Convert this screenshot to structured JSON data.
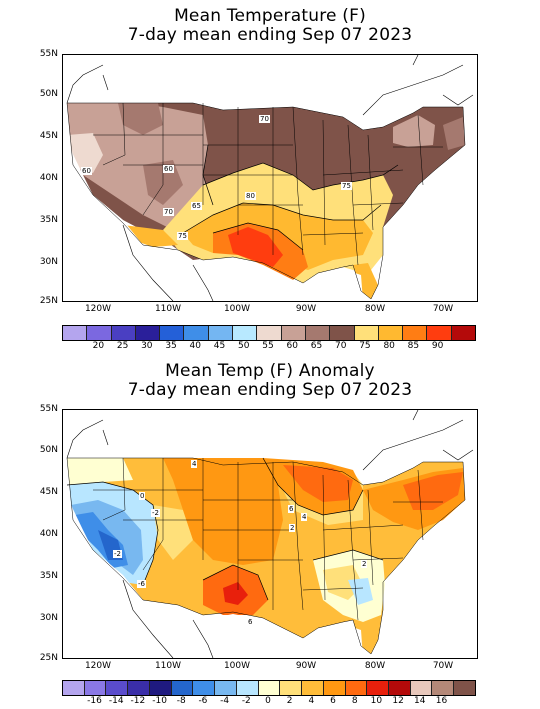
{
  "panel1": {
    "title_line1": "Mean Temperature (F)",
    "title_line2": "7-day mean ending Sep 07 2023",
    "lat_labels": [
      "55N",
      "50N",
      "45N",
      "40N",
      "35N",
      "30N",
      "25N"
    ],
    "lon_labels": [
      "120W",
      "110W",
      "100W",
      "90W",
      "80W",
      "70W"
    ],
    "contour_labels": [
      "70",
      "60",
      "60",
      "70",
      "65",
      "80",
      "75",
      "75"
    ],
    "colorbar_colors": [
      "#b4a5ee",
      "#7b68e0",
      "#4a3fc2",
      "#2a1f9a",
      "#2460d8",
      "#3f8ee8",
      "#74b6f2",
      "#b8e9ff",
      "#eedad0",
      "#c8a196",
      "#a5796f",
      "#7f5349",
      "#ffe07a",
      "#ffb930",
      "#ff7d14",
      "#ff3d0f",
      "#b40a0a"
    ],
    "colorbar_ticks": [
      "20",
      "25",
      "30",
      "35",
      "40",
      "45",
      "50",
      "55",
      "60",
      "65",
      "70",
      "75",
      "80",
      "85",
      "90"
    ]
  },
  "panel2": {
    "title_line1": "Mean Temp (F) Anomaly",
    "title_line2": "7-day mean ending Sep 07 2023",
    "lat_labels": [
      "55N",
      "50N",
      "45N",
      "40N",
      "35N",
      "30N",
      "25N"
    ],
    "lon_labels": [
      "120W",
      "110W",
      "100W",
      "90W",
      "80W",
      "70W"
    ],
    "contour_labels": [
      "4",
      "0",
      "-2",
      "-6",
      "6",
      "4",
      "2",
      "6",
      "2",
      "-2"
    ],
    "colorbar_colors": [
      "#b4a5ee",
      "#8a78e6",
      "#5a4ccc",
      "#3a2ea8",
      "#1f1a80",
      "#2466cc",
      "#3f8ee8",
      "#78b8f0",
      "#b8e6ff",
      "#ffffd2",
      "#ffe07a",
      "#ffbd3a",
      "#ff9812",
      "#ff6a10",
      "#e8200c",
      "#b40a0a",
      "#e8c8bc",
      "#b48878",
      "#7f5349"
    ],
    "colorbar_ticks": [
      "-16",
      "-14",
      "-12",
      "-10",
      "-8",
      "-6",
      "-4",
      "-2",
      "0",
      "2",
      "4",
      "6",
      "8",
      "10",
      "12",
      "14",
      "16"
    ]
  }
}
